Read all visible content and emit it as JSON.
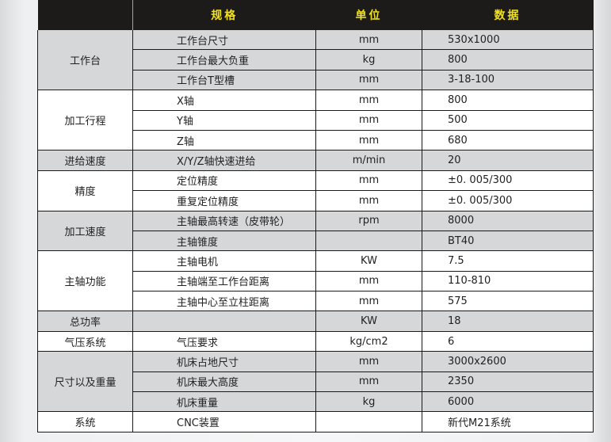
{
  "header": {
    "col1": "",
    "col2": "规格",
    "col3": "单位",
    "col4": "数据"
  },
  "groups": [
    {
      "name": "工作台",
      "rows": [
        [
          "工作台尺寸",
          "mm",
          "530x1000"
        ],
        [
          "工作台最大负重",
          "kg",
          "800"
        ],
        [
          "工作台T型槽",
          "mm",
          "3-18-100"
        ]
      ]
    },
    {
      "name": "加工行程",
      "rows": [
        [
          "X轴",
          "mm",
          "800"
        ],
        [
          "Y轴",
          "mm",
          "500"
        ],
        [
          "Z轴",
          "mm",
          "680"
        ]
      ]
    },
    {
      "name": "进给速度",
      "rows": [
        [
          "X/Y/Z轴快速进给",
          "m/min",
          "20"
        ]
      ]
    },
    {
      "name": "精度",
      "rows": [
        [
          "定位精度",
          "mm",
          "±0. 005/300"
        ],
        [
          "重复定位精度",
          "mm",
          "±0. 005/300"
        ]
      ]
    },
    {
      "name": "加工速度",
      "rows": [
        [
          "主轴最高转速（皮带轮）",
          "rpm",
          "8000"
        ],
        [
          "主轴锥度",
          "",
          "BT40"
        ]
      ]
    },
    {
      "name": "主轴功能",
      "rows": [
        [
          "主轴电机",
          "KW",
          "7.5"
        ],
        [
          "主轴端至工作台距离",
          "mm",
          "110-810"
        ],
        [
          "主轴中心至立柱距离",
          "mm",
          "575"
        ]
      ]
    },
    {
      "name": "总功率",
      "rows": [
        [
          "",
          "KW",
          "18"
        ]
      ]
    },
    {
      "name": "气压系统",
      "rows": [
        [
          "气压要求",
          "kg/cm2",
          "6"
        ]
      ]
    },
    {
      "name": "尺寸以及重量",
      "rows": [
        [
          "机床占地尺寸",
          "mm",
          "3000x2600"
        ],
        [
          "机床最大高度",
          "mm",
          "2350"
        ],
        [
          "机床重量",
          "kg",
          "6000"
        ]
      ]
    },
    {
      "name": "系统",
      "rows": [
        [
          "CNC装置",
          "",
          "新代M21系统"
        ]
      ]
    }
  ],
  "colors": {
    "header_bg": "#1c1b19",
    "header_text": "#f0e020",
    "band_gray": "#d6d7d9",
    "band_white": "#ffffff"
  }
}
